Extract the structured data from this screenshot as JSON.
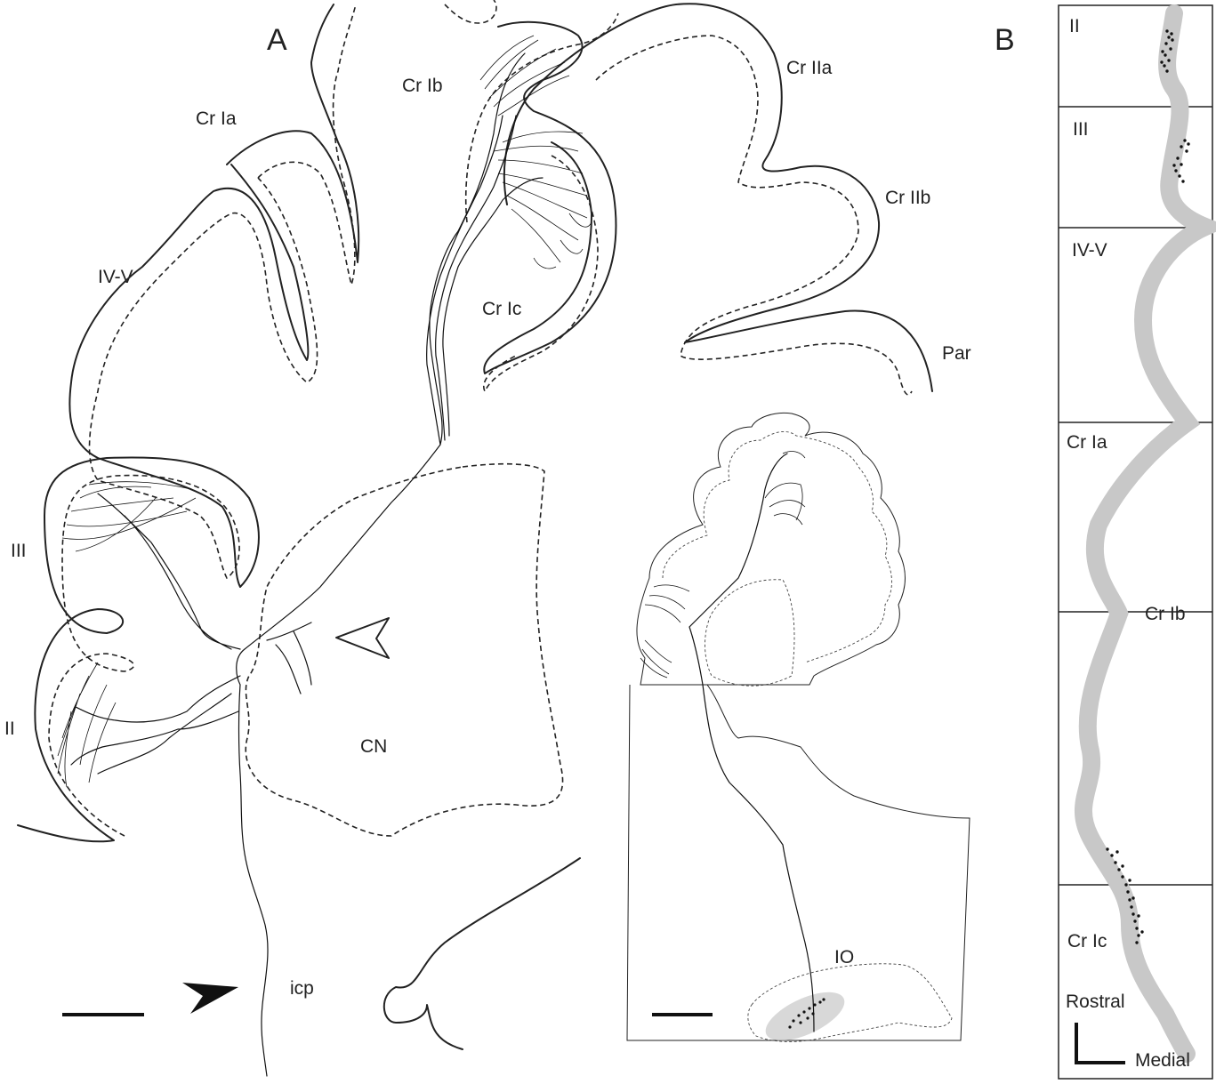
{
  "panel_a": {
    "panel_letter": "A",
    "lobule_labels": {
      "cr_ia": "Cr Ia",
      "cr_ib": "Cr Ib",
      "cr_iia": "Cr IIa",
      "cr_iib": "Cr IIb",
      "iv_v": "IV-V",
      "cr_ic": "Cr Ic",
      "par": "Par",
      "iii": "III",
      "ii": "II",
      "cn": "CN",
      "icp": "icp"
    }
  },
  "inset": {
    "io_label": "IO"
  },
  "panel_b": {
    "panel_letter": "B",
    "segments": [
      "II",
      "III",
      "IV-V",
      "Cr Ia",
      "Cr Ib",
      "Cr Ic"
    ],
    "axis_vertical": "Rostral",
    "axis_horizontal": "Medial",
    "band_color": "#c8c8c8"
  }
}
